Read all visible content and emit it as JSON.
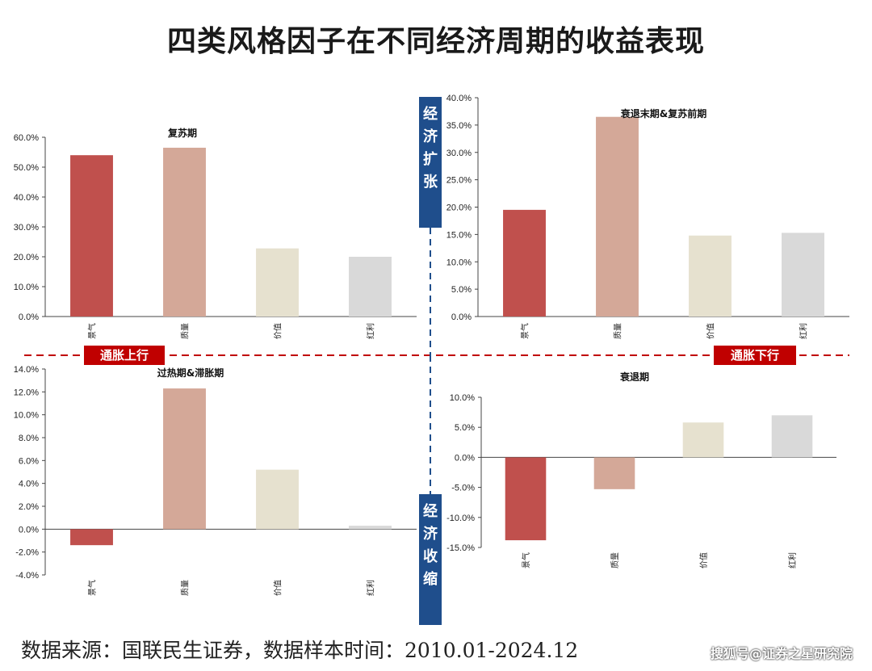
{
  "title": "四类风格因子在不同经济周期的收益表现",
  "labels": {
    "expansion": "经济扩张",
    "contraction": "经济收缩",
    "inflation_up": "通胀上行",
    "inflation_down": "通胀下行"
  },
  "footer": {
    "source": "数据来源：国联民生证券，数据样本时间：2010.01-2024.12",
    "watermark": "搜狐号@证券之星研究院"
  },
  "colors": {
    "bars": [
      "#c0504d",
      "#d4a898",
      "#e6e1cf",
      "#d9d9d9"
    ],
    "divider": "#c00000",
    "axis_dash": "#1f4e8c",
    "label_blue": "#1f4e8c",
    "label_red": "#c00000"
  },
  "chart_data": [
    {
      "type": "bar",
      "title": "复苏期",
      "categories": [
        "景气",
        "质量",
        "价值",
        "红利"
      ],
      "values": [
        54.0,
        56.5,
        22.8,
        20.0
      ],
      "ylim": [
        0,
        60
      ],
      "yticks": [
        0,
        10,
        20,
        30,
        40,
        50,
        60
      ],
      "tick_decimals": 1,
      "grid": false
    },
    {
      "type": "bar",
      "title": "衰退末期&复苏前期",
      "categories": [
        "景气",
        "质量",
        "价值",
        "红利"
      ],
      "values": [
        19.5,
        36.5,
        14.8,
        15.3
      ],
      "ylim": [
        0,
        40
      ],
      "yticks": [
        0,
        5,
        10,
        15,
        20,
        25,
        30,
        35,
        40
      ],
      "tick_decimals": 1,
      "grid": false
    },
    {
      "type": "bar",
      "title": "过热期&滞胀期",
      "categories": [
        "景气",
        "质量",
        "价值",
        "红利"
      ],
      "values": [
        -1.4,
        12.3,
        5.2,
        0.3
      ],
      "ylim": [
        -4,
        14
      ],
      "yticks": [
        -4,
        -2,
        0,
        2,
        4,
        6,
        8,
        10,
        12,
        14
      ],
      "tick_decimals": 1,
      "grid": false
    },
    {
      "type": "bar",
      "title": "衰退期",
      "categories": [
        "景气",
        "质量",
        "价值",
        "红利"
      ],
      "values": [
        -13.8,
        -5.3,
        5.8,
        7.0
      ],
      "ylim": [
        -15,
        10
      ],
      "yticks": [
        -15,
        -10,
        -5,
        0,
        5,
        10
      ],
      "tick_decimals": 1,
      "grid": false
    }
  ]
}
